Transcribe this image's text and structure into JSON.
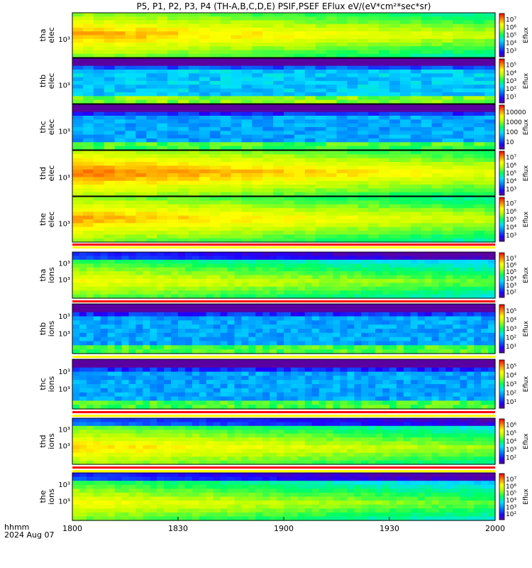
{
  "title": "P5, P1, P2, P3, P4 (TH-A,B,C,D,E) PSIF,PSEF EFlux eV/(eV*cm²*sec*sr)",
  "xaxis": {
    "label_line1": "hhmm",
    "label_line2": "2024 Aug 07",
    "ticks": [
      "1800",
      "1830",
      "1900",
      "1930",
      "2000"
    ],
    "range_minutes": [
      0,
      120
    ]
  },
  "colorbar_label": "Eflux",
  "chart_data": {
    "type": "heatmap",
    "panels": [
      {
        "id": "tha-elec",
        "ylabel": [
          "tha",
          "elec"
        ],
        "ytick": "10³",
        "cbar_ticks": [
          "10³",
          "10⁴",
          "10⁵",
          "10⁶",
          "10⁷"
        ],
        "cbar_range_log": [
          2.5,
          7.2
        ],
        "level": 0.85
      },
      {
        "id": "thb-elec",
        "ylabel": [
          "thb",
          "elec"
        ],
        "ytick": "10³",
        "cbar_ticks": [
          "10¹",
          "10²",
          "10³",
          "10⁴",
          "10⁵"
        ],
        "cbar_range_log": [
          0.6,
          5.3
        ],
        "level": 0.35
      },
      {
        "id": "thc-elec",
        "ylabel": [
          "thc",
          "elec"
        ],
        "ytick": "10³",
        "cbar_ticks": [
          "10",
          "100",
          "1000",
          "10000"
        ],
        "cbar_range_log": [
          0.6,
          4.6
        ],
        "level": 0.3
      },
      {
        "id": "thd-elec",
        "ylabel": [
          "thd",
          "elec"
        ],
        "ytick": "10³",
        "cbar_ticks": [
          "10³",
          "10⁴",
          "10⁵",
          "10⁶",
          "10⁷"
        ],
        "cbar_range_log": [
          2.5,
          7.2
        ],
        "level": 0.9
      },
      {
        "id": "the-elec",
        "ylabel": [
          "the",
          "elec"
        ],
        "ytick": "10³",
        "cbar_ticks": [
          "10³",
          "10⁴",
          "10⁵",
          "10⁶",
          "10⁷"
        ],
        "cbar_range_log": [
          2.5,
          7.2
        ],
        "level": 0.85
      },
      {
        "id": "tha-ions",
        "ylabel": [
          "tha",
          "ions"
        ],
        "ytick": "10³",
        "ytick_upper": "10³",
        "cbar_ticks": [
          "10²",
          "10³",
          "10⁴",
          "10⁵",
          "10⁶",
          "10⁷"
        ],
        "cbar_range_log": [
          1.7,
          7.2
        ],
        "level": 0.75
      },
      {
        "id": "thb-ions",
        "ylabel": [
          "thb",
          "ions"
        ],
        "ytick": "10³",
        "ytick_upper": "10³",
        "cbar_ticks": [
          "10¹",
          "10²",
          "10³",
          "10⁴",
          "10⁵"
        ],
        "cbar_range_log": [
          0.6,
          5.3
        ],
        "level": 0.3
      },
      {
        "id": "thc-ions",
        "ylabel": [
          "thc",
          "ions"
        ],
        "ytick": "10³",
        "ytick_upper": "10³",
        "cbar_ticks": [
          "10¹",
          "10²",
          "10³",
          "10⁴",
          "10⁵"
        ],
        "cbar_range_log": [
          0.6,
          5.3
        ],
        "level": 0.3
      },
      {
        "id": "thd-ions",
        "ylabel": [
          "thd",
          "ions"
        ],
        "ytick": "10³",
        "ytick_upper": "10³",
        "cbar_ticks": [
          "10²",
          "10³",
          "10⁴",
          "10⁵",
          "10⁶"
        ],
        "cbar_range_log": [
          1.7,
          6.4
        ],
        "level": 0.8
      },
      {
        "id": "the-ions",
        "ylabel": [
          "the",
          "ions"
        ],
        "ytick": "10³",
        "ytick_upper": "10³",
        "cbar_ticks": [
          "10²",
          "10³",
          "10⁴",
          "10⁵",
          "10⁶",
          "10⁷"
        ],
        "cbar_range_log": [
          1.7,
          7.2
        ],
        "level": 0.75
      }
    ]
  }
}
